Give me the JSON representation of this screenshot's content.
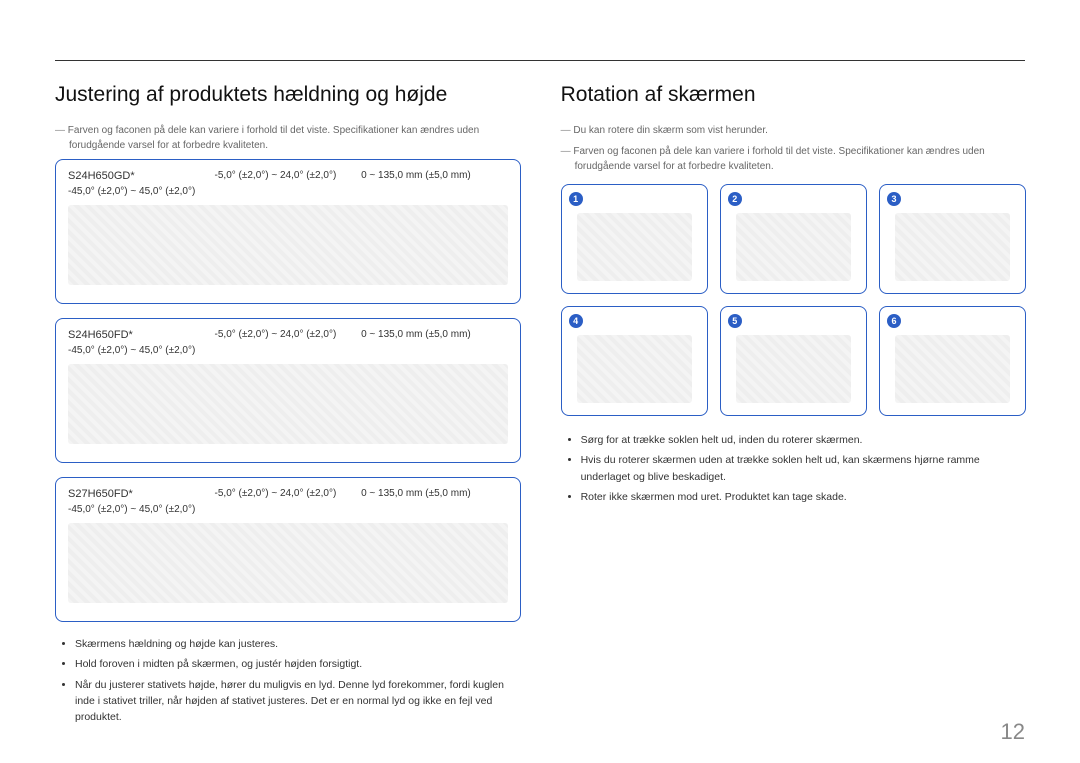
{
  "page_number": "12",
  "left": {
    "heading": "Justering af produktets hældning og højde",
    "notes": [
      "Farven og faconen på dele kan variere i forhold til det viste. Specifikationer kan ændres uden forudgående varsel for at forbedre kvaliteten."
    ],
    "models": [
      {
        "code": "S24H650GD*",
        "swivel": "-45,0° (±2,0°) ~ 45,0° (±2,0°)",
        "tilt": "-5,0° (±2,0°) ~ 24,0° (±2,0°)",
        "height": "0 ~ 135,0 mm (±5,0 mm)"
      },
      {
        "code": "S24H650FD*",
        "swivel": "-45,0° (±2,0°) ~ 45,0° (±2,0°)",
        "tilt": "-5,0° (±2,0°) ~ 24,0° (±2,0°)",
        "height": "0 ~ 135,0 mm (±5,0 mm)"
      },
      {
        "code": "S27H650FD*",
        "swivel": "-45,0° (±2,0°) ~ 45,0° (±2,0°)",
        "tilt": "-5,0° (±2,0°) ~ 24,0° (±2,0°)",
        "height": "0 ~ 135,0 mm (±5,0 mm)"
      }
    ],
    "bullets": [
      "Skærmens hældning og højde kan justeres.",
      "Hold foroven i midten på skærmen, og justér højden forsigtigt.",
      "Når du justerer stativets højde, hører du muligvis en lyd. Denne lyd forekommer, fordi kuglen inde i stativet triller, når højden af stativet justeres. Det er en normal lyd og ikke en fejl ved produktet."
    ]
  },
  "right": {
    "heading": "Rotation af skærmen",
    "notes": [
      "Du kan rotere din skærm som vist herunder.",
      "Farven og faconen på dele kan variere i forhold til det viste. Specifikationer kan ændres uden forudgående varsel for at forbedre kvaliteten."
    ],
    "steps": [
      "1",
      "2",
      "3",
      "4",
      "5",
      "6"
    ],
    "bullets": [
      "Sørg for at trække soklen helt ud, inden du roterer skærmen.",
      "Hvis du roterer skærmen uden at trække soklen helt ud, kan skærmens hjørne ramme underlaget og blive beskadiget.",
      "Roter ikke skærmen mod uret. Produktet kan tage skade."
    ]
  },
  "colors": {
    "accent": "#2b5ec5",
    "text": "#333333",
    "muted": "#666666"
  }
}
